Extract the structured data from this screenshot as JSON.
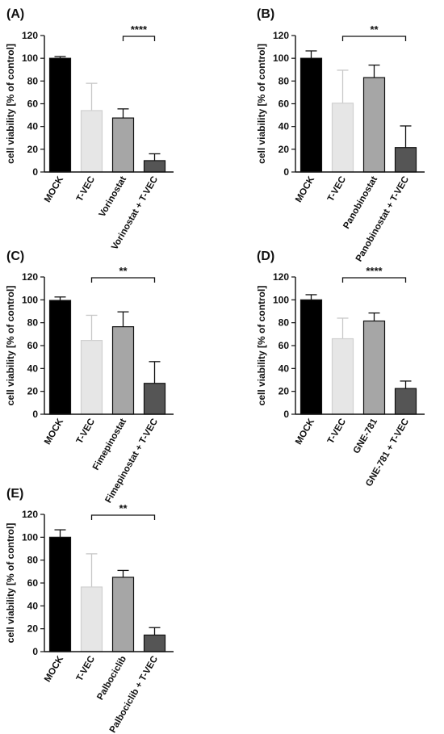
{
  "chart_data": [
    {
      "type": "bar",
      "panel_label": "(A)",
      "ylabel": "cell viability [% of control]",
      "ylim": [
        0,
        120
      ],
      "yticks": [
        0,
        20,
        40,
        60,
        80,
        100,
        120
      ],
      "categories": [
        "MOCK",
        "T-VEC",
        "Vorinostat",
        "Vorinostat + T-VEC"
      ],
      "values": [
        100,
        54,
        47.5,
        10
      ],
      "errors": [
        1.5,
        24,
        8,
        6
      ],
      "bar_colors": [
        "#000000",
        "#e6e6e6",
        "#a6a6a6",
        "#555555"
      ],
      "significance": {
        "from": 2,
        "to": 3,
        "label": "****"
      }
    },
    {
      "type": "bar",
      "panel_label": "(B)",
      "ylabel": "cell viability [% of control]",
      "ylim": [
        0,
        120
      ],
      "yticks": [
        0,
        20,
        40,
        60,
        80,
        100,
        120
      ],
      "categories": [
        "MOCK",
        "T-VEC",
        "Panobinostat",
        "Panobinostat + T-VEC"
      ],
      "values": [
        100,
        60.5,
        83,
        21.5
      ],
      "errors": [
        6.5,
        29,
        11,
        19
      ],
      "bar_colors": [
        "#000000",
        "#e6e6e6",
        "#a6a6a6",
        "#555555"
      ],
      "significance": {
        "from": 1,
        "to": 3,
        "label": "**"
      }
    },
    {
      "type": "bar",
      "panel_label": "(C)",
      "ylabel": "cell viability [% of control]",
      "ylim": [
        0,
        120
      ],
      "yticks": [
        0,
        20,
        40,
        60,
        80,
        100,
        120
      ],
      "categories": [
        "MOCK",
        "T-VEC",
        "Fimepinostat",
        "Fimepinostat + T-VEC"
      ],
      "values": [
        99.5,
        64.5,
        76.5,
        27
      ],
      "errors": [
        3,
        22,
        13,
        19
      ],
      "bar_colors": [
        "#000000",
        "#e6e6e6",
        "#a6a6a6",
        "#555555"
      ],
      "significance": {
        "from": 1,
        "to": 3,
        "label": "**"
      }
    },
    {
      "type": "bar",
      "panel_label": "(D)",
      "ylabel": "cell viability [% of control]",
      "ylim": [
        0,
        120
      ],
      "yticks": [
        0,
        20,
        40,
        60,
        80,
        100,
        120
      ],
      "categories": [
        "MOCK",
        "T-VEC",
        "GNE-781",
        "GNE-781 + T-VEC"
      ],
      "values": [
        100,
        66,
        81.5,
        22.5
      ],
      "errors": [
        4.5,
        18,
        7,
        6.5
      ],
      "bar_colors": [
        "#000000",
        "#e6e6e6",
        "#a6a6a6",
        "#555555"
      ],
      "significance": {
        "from": 1,
        "to": 3,
        "label": "****"
      }
    },
    {
      "type": "bar",
      "panel_label": "(E)",
      "ylabel": "cell viability [% of control]",
      "ylim": [
        0,
        120
      ],
      "yticks": [
        0,
        20,
        40,
        60,
        80,
        100,
        120
      ],
      "categories": [
        "MOCK",
        "T-VEC",
        "Palbociclib",
        "Palbociclib + T-VEC"
      ],
      "values": [
        100,
        56.5,
        65,
        14.5
      ],
      "errors": [
        6.5,
        29,
        6,
        6.5
      ],
      "bar_colors": [
        "#000000",
        "#e6e6e6",
        "#a6a6a6",
        "#555555"
      ],
      "significance": {
        "from": 1,
        "to": 3,
        "label": "**"
      }
    }
  ]
}
